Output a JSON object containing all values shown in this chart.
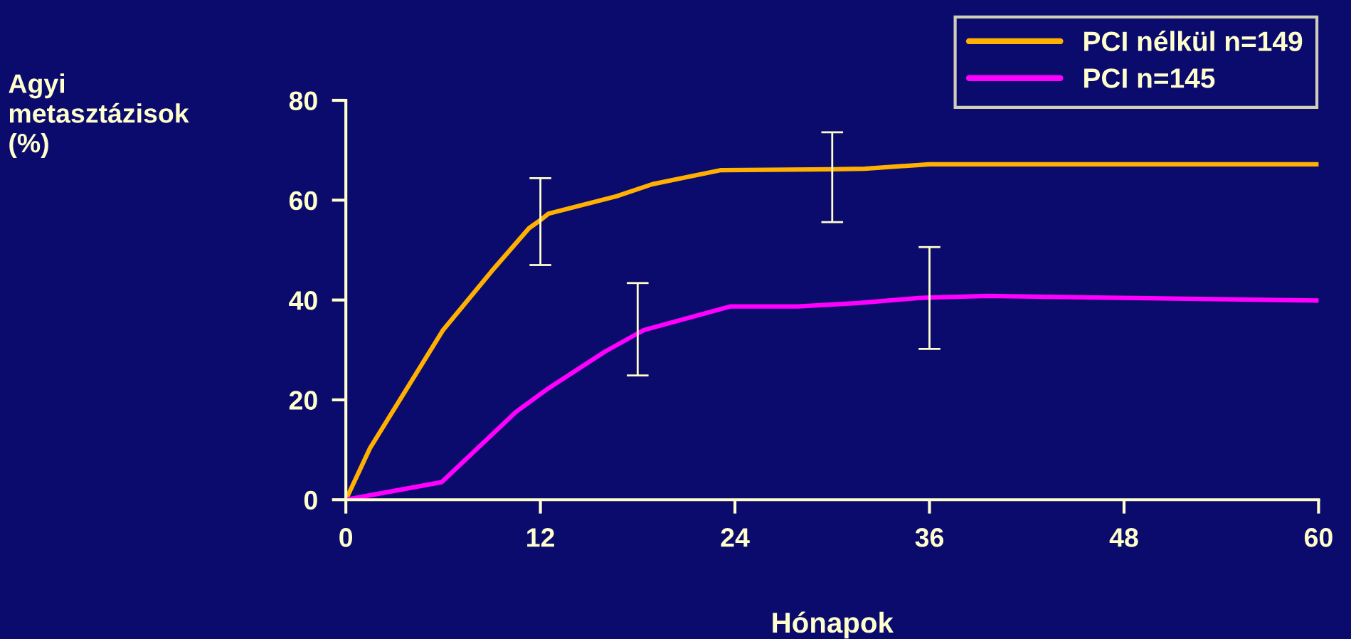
{
  "chart_data": {
    "type": "line",
    "xlabel": "Hónapok",
    "ylabel": "Agyi\nmetasztázisok\n(%)",
    "xlim": [
      0,
      60
    ],
    "xticks": [
      0,
      12,
      24,
      36,
      48,
      60
    ],
    "ylim": [
      0,
      80
    ],
    "yticks": [
      0,
      20,
      40,
      60,
      80
    ],
    "grid": false,
    "legend": "top right",
    "marker": "none",
    "line_style": "solid",
    "series": [
      {
        "name": "PCI nélkül n=149",
        "color": "#ffb000",
        "x": [
          0,
          1.5,
          6,
          9,
          11.3,
          12,
          12.5,
          16.7,
          18.9,
          23.1,
          30,
          32,
          36,
          60
        ],
        "values": [
          0,
          10.4,
          34,
          45.8,
          54.4,
          56,
          57.3,
          60.8,
          63.2,
          66,
          66.2,
          66.3,
          67.2,
          67.2
        ],
        "errors": [
          null,
          null,
          null,
          null,
          null,
          [
            47,
            64.4
          ],
          null,
          null,
          null,
          null,
          [
            55.6,
            73.6
          ],
          null,
          null,
          null
        ]
      },
      {
        "name": "PCI n=145",
        "color": "#ff00ff",
        "x": [
          0,
          5.9,
          10.5,
          12.4,
          16,
          18,
          18.4,
          23.7,
          27.9,
          31.6,
          35.3,
          36,
          39.6,
          60
        ],
        "values": [
          0,
          3.5,
          17.6,
          22.1,
          29.7,
          33.3,
          34,
          38.7,
          38.7,
          39.4,
          40.4,
          40.5,
          40.8,
          39.9
        ],
        "errors": [
          null,
          null,
          null,
          null,
          null,
          [
            24.9,
            43.4
          ],
          null,
          null,
          null,
          null,
          null,
          [
            30.2,
            50.6
          ],
          null,
          null
        ]
      }
    ]
  }
}
